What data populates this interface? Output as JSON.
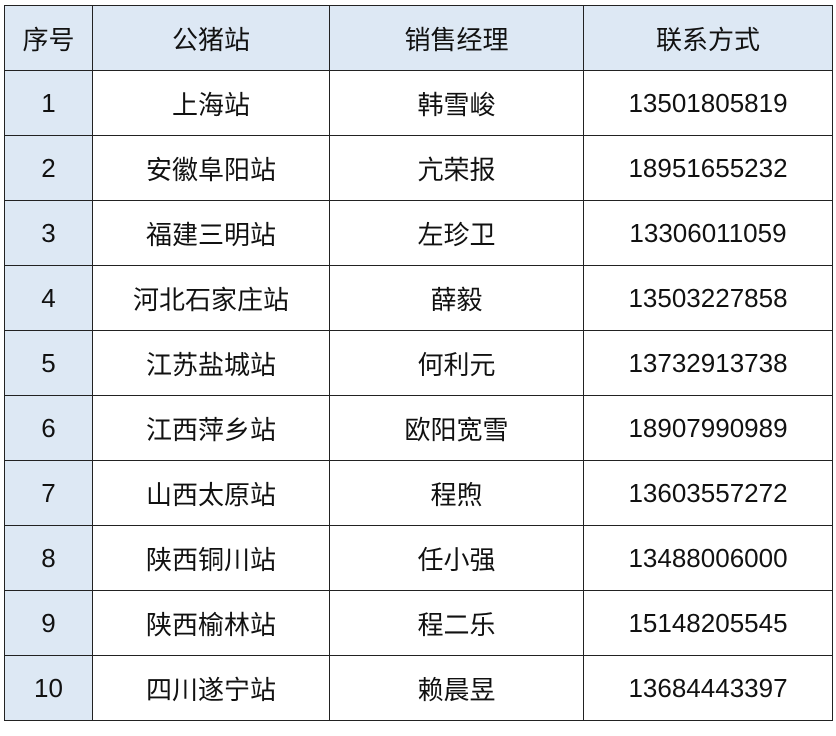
{
  "header": [
    "序号",
    "公猪站",
    "销售经理",
    "联系方式"
  ],
  "rows": [
    {
      "index": "1",
      "station": "上海站",
      "manager": "韩雪峻",
      "phone": "13501805819"
    },
    {
      "index": "2",
      "station": "安徽阜阳站",
      "manager": "亢荣报",
      "phone": "18951655232"
    },
    {
      "index": "3",
      "station": "福建三明站",
      "manager": "左珍卫",
      "phone": "13306011059"
    },
    {
      "index": "4",
      "station": "河北石家庄站",
      "manager": "薛毅",
      "phone": "13503227858"
    },
    {
      "index": "5",
      "station": "江苏盐城站",
      "manager": "何利元",
      "phone": "13732913738"
    },
    {
      "index": "6",
      "station": "江西萍乡站",
      "manager": "欧阳宽雪",
      "phone": "18907990989"
    },
    {
      "index": "7",
      "station": "山西太原站",
      "manager": "程煦",
      "phone": "13603557272"
    },
    {
      "index": "8",
      "station": "陕西铜川站",
      "manager": "任小强",
      "phone": "13488006000"
    },
    {
      "index": "9",
      "station": "陕西榆林站",
      "manager": "程二乐",
      "phone": "15148205545"
    },
    {
      "index": "10",
      "station": "四川遂宁站",
      "manager": "赖晨昱",
      "phone": "13684443397"
    }
  ],
  "colors": {
    "header_bg": "#dde8f4",
    "border": "#222222"
  }
}
